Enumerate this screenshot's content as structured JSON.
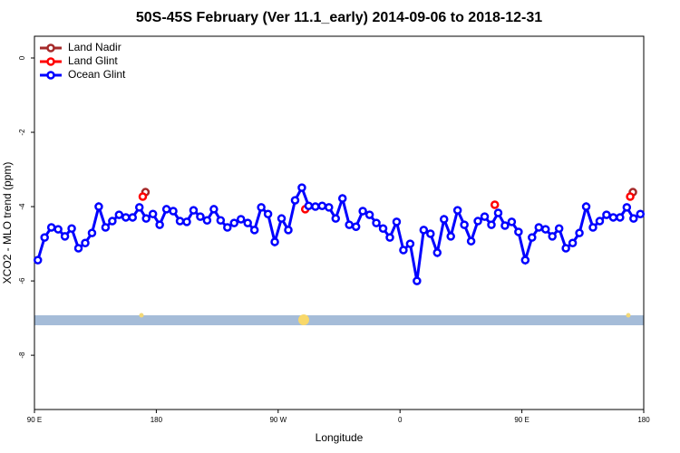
{
  "chart_data": {
    "type": "line",
    "title": "50S-45S February (Ver 11.1_early)   2014-09-06 to 2018-12-31",
    "x_label": "Longitude",
    "y_label": "XCO2 - MLO trend (ppm)",
    "xlim": [
      90,
      540
    ],
    "xticks": [
      {
        "value": 90,
        "label": "90 E"
      },
      {
        "value": 180,
        "label": "180"
      },
      {
        "value": 270,
        "label": "90 W"
      },
      {
        "value": 360,
        "label": "0"
      },
      {
        "value": 450,
        "label": "90 E"
      },
      {
        "value": 540,
        "label": "180"
      }
    ],
    "ylim": [
      -9.46,
      0.585
    ],
    "yticks": [
      0,
      -2,
      -4,
      -6,
      -8
    ],
    "legend": "top-left",
    "series": [
      {
        "name": "Land Nadir",
        "color": "#a52a2a",
        "x": [
          172,
          532
        ],
        "values": [
          -3.61,
          -3.61
        ]
      },
      {
        "name": "Land Glint",
        "color": "#ff0000",
        "x": [
          170,
          290,
          430,
          530
        ],
        "values": [
          -3.73,
          -4.07,
          -3.95,
          -3.73
        ]
      },
      {
        "name": "Ocean Glint",
        "color": "#0000ff",
        "x": [
          92.5,
          97.5,
          102.5,
          107.5,
          112.5,
          117.5,
          122.5,
          127.5,
          132.5,
          137.5,
          142.5,
          147.5,
          152.5,
          157.5,
          162.5,
          167.5,
          172.5,
          177.5,
          182.5,
          187.5,
          192.5,
          197.5,
          202.5,
          207.5,
          212.5,
          217.5,
          222.5,
          227.5,
          232.5,
          237.5,
          242.5,
          247.5,
          252.5,
          257.5,
          262.5,
          267.5,
          272.5,
          277.5,
          282.5,
          287.5,
          292.5,
          297.5,
          302.5,
          307.5,
          312.5,
          317.5,
          322.5,
          327.5,
          332.5,
          337.5,
          342.5,
          347.5,
          352.5,
          357.5,
          362.5,
          367.5,
          372.5,
          377.5,
          382.5,
          387.5,
          392.5,
          397.5,
          402.5,
          407.5,
          412.5,
          417.5,
          422.5,
          427.5,
          432.5,
          437.5,
          442.5,
          447.5,
          452.5,
          457.5,
          462.5,
          467.5,
          472.5,
          477.5,
          482.5,
          487.5,
          492.5,
          497.5,
          502.5,
          507.5,
          512.5,
          517.5,
          522.5,
          527.5,
          532.5,
          537.5
        ],
        "values": [
          -5.44,
          -4.83,
          -4.56,
          -4.61,
          -4.8,
          -4.59,
          -5.12,
          -4.98,
          -4.71,
          -4.0,
          -4.56,
          -4.39,
          -4.22,
          -4.29,
          -4.29,
          -4.02,
          -4.32,
          -4.2,
          -4.49,
          -4.07,
          -4.12,
          -4.39,
          -4.41,
          -4.1,
          -4.27,
          -4.37,
          -4.07,
          -4.37,
          -4.56,
          -4.44,
          -4.34,
          -4.44,
          -4.63,
          -4.02,
          -4.2,
          -4.95,
          -4.32,
          -4.63,
          -3.83,
          -3.49,
          -3.98,
          -4.0,
          -3.98,
          -4.02,
          -4.32,
          -3.78,
          -4.49,
          -4.54,
          -4.12,
          -4.22,
          -4.44,
          -4.59,
          -4.83,
          -4.41,
          -5.17,
          -5.0,
          -6.0,
          -4.63,
          -4.73,
          -5.24,
          -4.34,
          -4.8,
          -4.1,
          -4.49,
          -4.93,
          -4.39,
          -4.27,
          -4.49,
          -4.17,
          -4.51,
          -4.41,
          -4.68,
          -5.44,
          -4.83,
          -4.56,
          -4.61,
          -4.8,
          -4.59,
          -5.12,
          -4.98,
          -4.71,
          -4.0,
          -4.56,
          -4.39,
          -4.22,
          -4.29,
          -4.29,
          -4.02,
          -4.32,
          -4.2
        ]
      }
    ]
  }
}
